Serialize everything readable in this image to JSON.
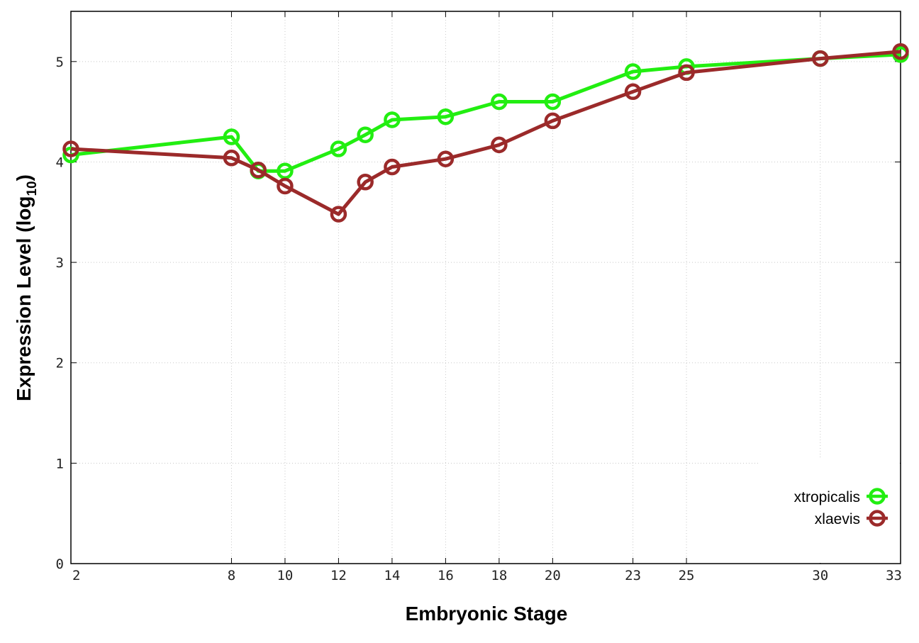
{
  "chart_data": {
    "type": "line",
    "xlabel": "Embryonic Stage",
    "ylabel": "Expression Level (log",
    "ylabel_subscript": "10",
    "ylabel_close": ")",
    "x_ticks": [
      2,
      8,
      10,
      12,
      14,
      16,
      18,
      20,
      23,
      25,
      30,
      33
    ],
    "y_ticks": [
      0,
      1,
      2,
      3,
      4,
      5
    ],
    "xlim": [
      2,
      33
    ],
    "ylim": [
      0,
      5.5
    ],
    "grid": true,
    "legend_position": "bottom-right",
    "series": [
      {
        "name": "xtropicalis",
        "color": "#22ee11",
        "x": [
          2,
          8,
          9,
          10,
          12,
          13,
          14,
          16,
          18,
          20,
          23,
          25,
          30,
          33
        ],
        "y": [
          4.07,
          4.25,
          3.91,
          3.91,
          4.13,
          4.27,
          4.42,
          4.45,
          4.6,
          4.6,
          4.9,
          4.95,
          5.03,
          5.07
        ]
      },
      {
        "name": "xlaevis",
        "color": "#9b2a2a",
        "x": [
          2,
          8,
          9,
          10,
          12,
          13,
          14,
          16,
          18,
          20,
          23,
          25,
          30,
          33
        ],
        "y": [
          4.13,
          4.04,
          3.92,
          3.76,
          3.48,
          3.8,
          3.95,
          4.03,
          4.17,
          4.41,
          4.7,
          4.89,
          5.03,
          5.1
        ]
      }
    ]
  }
}
